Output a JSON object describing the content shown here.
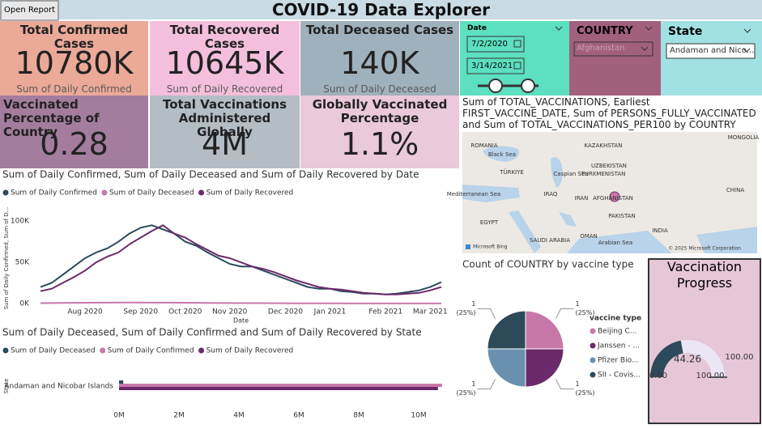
{
  "header": {
    "title": "COVID-19 Data Explorer",
    "button": "Open Report"
  },
  "cards": [
    {
      "title": "Total Confirmed Cases",
      "value": "10780K",
      "subtitle": "Sum of Daily Confirmed"
    },
    {
      "title": "Total Recovered Cases",
      "value": "10645K",
      "subtitle": "Sum of Daily Recovered"
    },
    {
      "title": "Total Deceased Cases",
      "value": "140K",
      "subtitle": "Sum of Daily Deceased"
    },
    {
      "title": "Vaccinated Percentage of Country",
      "value": "0.28"
    },
    {
      "title": "Total Vaccinations Administered Globally",
      "value": "4M"
    },
    {
      "title": "Globally Vaccinated Percentage",
      "value": "1.1%"
    }
  ],
  "filters": {
    "date": {
      "label": "Date",
      "start": "7/2/2020",
      "end": "3/14/2021"
    },
    "country": {
      "label": "COUNTRY",
      "selected": "Afghanistan"
    },
    "state": {
      "label": "State",
      "selected": "Andaman and Nico..."
    }
  },
  "map": {
    "title": "Sum of TOTAL_VACCINATIONS, Earliest FIRST_VACCINE_DATE, Sum of PERSONS_FULLY_VACCINATED and Sum of TOTAL_VACCINATIONS_PER100 by COUNTRY",
    "labels": [
      "Black Sea",
      "TÜRKIYE",
      "ROMANIA",
      "KAZAKHSTAN",
      "UZBEKISTAN",
      "TURKMENISTAN",
      "IRAQ",
      "IRAN",
      "AFGHANISTAN",
      "PAKISTAN",
      "INDIA",
      "CHINA",
      "MONGOLIA",
      "EGYPT",
      "SAUDI ARABIA",
      "OMAN",
      "Caspian Sea",
      "Arabian Sea",
      "Mediterranean Sea"
    ],
    "provider": "Microsoft Bing",
    "attribution": "© 2025 Microsoft Corporation"
  },
  "chart_data": [
    {
      "type": "line",
      "title": "Sum of Daily Confirmed, Sum of Daily Deceased and Sum of Daily Recovered by Date",
      "x_label": "Date",
      "y_label": "Sum of Daily Confirmed, Sum of D...",
      "categories": [
        null,
        null,
        null,
        null,
        "Aug 2020",
        null,
        null,
        null,
        null,
        "Sep 2020",
        null,
        null,
        null,
        "Oct 2020",
        null,
        null,
        null,
        "Nov 2020",
        null,
        null,
        null,
        null,
        "Dec 2020",
        null,
        null,
        null,
        "Jan 2021",
        null,
        null,
        null,
        null,
        "Feb 2021",
        null,
        null,
        null,
        "Mar 2021",
        null
      ],
      "series": [
        {
          "name": "Sum of Daily Confirmed",
          "color": "#2d4a5a",
          "values": [
            20000,
            25000,
            35000,
            45000,
            55000,
            62000,
            67000,
            75000,
            85000,
            92000,
            95000,
            90000,
            85000,
            75000,
            70000,
            62000,
            55000,
            48000,
            45000,
            45000,
            40000,
            35000,
            30000,
            25000,
            20000,
            18000,
            18000,
            15000,
            14000,
            12000,
            12000,
            11000,
            12000,
            14000,
            16000,
            20000,
            26000
          ]
        },
        {
          "name": "Sum of Daily Deceased",
          "color": "#c878a8",
          "values": [
            500,
            600,
            800,
            900,
            1000,
            1050,
            1100,
            1150,
            1150,
            1150,
            1100,
            1100,
            1050,
            1000,
            900,
            700,
            600,
            550,
            500,
            450,
            450,
            400,
            350,
            300,
            250,
            200,
            180,
            150,
            130,
            110,
            100,
            100,
            100,
            110,
            120,
            130,
            140
          ]
        },
        {
          "name": "Sum of Daily Recovered",
          "color": "#6a2a6a",
          "values": [
            15000,
            18000,
            25000,
            32000,
            40000,
            50000,
            57000,
            62000,
            72000,
            80000,
            88000,
            95000,
            85000,
            80000,
            72000,
            65000,
            58000,
            55000,
            50000,
            45000,
            42000,
            38000,
            33000,
            28000,
            24000,
            20000,
            18000,
            17000,
            15000,
            13000,
            12000,
            11000,
            11000,
            12000,
            13000,
            16000,
            20000
          ]
        }
      ],
      "ylim": [
        0,
        110000
      ],
      "yticks": [
        {
          "value": 0,
          "label": "0K"
        },
        {
          "value": 50000,
          "label": "50K"
        },
        {
          "value": 100000,
          "label": "100K"
        }
      ],
      "grid": false,
      "legend": "top-left"
    },
    {
      "type": "bar",
      "orientation": "horizontal",
      "title": "Sum of Daily Deceased, Sum of Daily Confirmed and Sum of Daily Recovered by State",
      "y_label": "State",
      "categories": [
        "Andaman and Nicobar Islands"
      ],
      "series": [
        {
          "name": "Sum of Daily Deceased",
          "color": "#2d4a5a",
          "values": [
            140000
          ]
        },
        {
          "name": "Sum of Daily Confirmed",
          "color": "#c878a8",
          "values": [
            10780000
          ]
        },
        {
          "name": "Sum of Daily Recovered",
          "color": "#6a2a6a",
          "values": [
            10645000
          ]
        }
      ],
      "xlim": [
        0,
        11000000
      ],
      "xticks": [
        {
          "value": 0,
          "label": "0M"
        },
        {
          "value": 2000000,
          "label": "2M"
        },
        {
          "value": 4000000,
          "label": "4M"
        },
        {
          "value": 6000000,
          "label": "6M"
        },
        {
          "value": 8000000,
          "label": "8M"
        },
        {
          "value": 10000000,
          "label": "10M"
        }
      ],
      "legend": "top-left"
    },
    {
      "type": "pie",
      "title": "Count of COUNTRY by vaccine type",
      "legend_title": "vaccine type",
      "categories": [
        "Beijing C...",
        "Janssen - ...",
        "Pfizer Bio...",
        "SII - Covis..."
      ],
      "values": [
        1,
        1,
        1,
        1
      ],
      "percent_labels": [
        "(25%)",
        "(25%)",
        "(25%)",
        "(25%)"
      ],
      "colors": [
        "#c878a8",
        "#6a2a6a",
        "#6a90b0",
        "#2d4a5a"
      ]
    },
    {
      "type": "gauge",
      "title": "Vaccination Progress",
      "value": 44.26,
      "min": {
        "value": 0,
        "label": "0.00"
      },
      "max": {
        "value": 100,
        "label": "100.00"
      },
      "target": {
        "value": 100,
        "label": "100.00"
      },
      "color": "#2d4a5a",
      "track_color": "#ebe6f5"
    }
  ]
}
